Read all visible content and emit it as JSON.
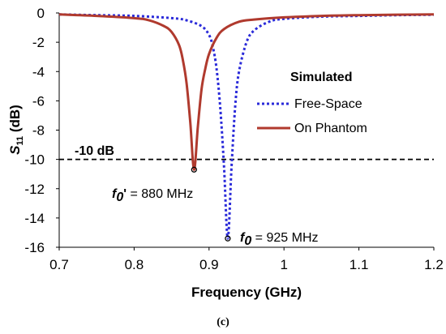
{
  "chart_data": {
    "type": "line",
    "title": "",
    "xlabel": "Frequency (GHz)",
    "ylabel_main": "S",
    "ylabel_sub": "11",
    "ylabel_unit": " (dB)",
    "xlim": [
      0.7,
      1.2
    ],
    "ylim": [
      -16,
      0
    ],
    "x_ticks": [
      "0.7",
      "0.8",
      "0.9",
      "1",
      "1.1",
      "1.2"
    ],
    "y_ticks": [
      "0",
      "-2",
      "-4",
      "-6",
      "-8",
      "-10",
      "-12",
      "-14",
      "-16"
    ],
    "grid": false,
    "legend": {
      "title": "Simulated",
      "placement": "right",
      "entries": [
        "Free-Space",
        "On Phantom"
      ]
    },
    "series": [
      {
        "name": "Free-Space",
        "color": "#2b2bd9",
        "style": "dotted",
        "x": [
          0.7,
          0.75,
          0.8,
          0.85,
          0.87,
          0.89,
          0.9,
          0.905,
          0.91,
          0.915,
          0.92,
          0.925,
          0.93,
          0.935,
          0.94,
          0.95,
          0.96,
          0.98,
          1.0,
          1.05,
          1.1,
          1.15,
          1.2
        ],
        "y": [
          -0.1,
          -0.15,
          -0.2,
          -0.35,
          -0.5,
          -0.9,
          -1.5,
          -2.3,
          -3.8,
          -6.5,
          -10.5,
          -15.4,
          -10.5,
          -6.3,
          -4.0,
          -2.0,
          -1.2,
          -0.6,
          -0.4,
          -0.25,
          -0.2,
          -0.15,
          -0.12
        ]
      },
      {
        "name": "On Phantom",
        "color": "#b03a2e",
        "style": "solid",
        "x": [
          0.7,
          0.75,
          0.8,
          0.82,
          0.84,
          0.85,
          0.86,
          0.865,
          0.87,
          0.875,
          0.88,
          0.885,
          0.89,
          0.895,
          0.9,
          0.91,
          0.92,
          0.94,
          0.96,
          1.0,
          1.05,
          1.1,
          1.15,
          1.2
        ],
        "y": [
          -0.1,
          -0.2,
          -0.35,
          -0.5,
          -0.9,
          -1.3,
          -2.2,
          -3.2,
          -4.8,
          -7.5,
          -10.7,
          -7.8,
          -5.2,
          -3.8,
          -2.8,
          -1.7,
          -1.1,
          -0.6,
          -0.45,
          -0.3,
          -0.2,
          -0.15,
          -0.12,
          -0.1
        ]
      }
    ],
    "reference_line": {
      "y": -10,
      "label": "-10 dB",
      "style": "dashed",
      "color": "#000000"
    },
    "markers": [
      {
        "x": 0.925,
        "y": -15.4,
        "label_main": "f",
        "label_sub": "0",
        "label_prime": "",
        "label_value": " = 925 MHz"
      },
      {
        "x": 0.88,
        "y": -10.7,
        "label_main": "f",
        "label_sub": "0",
        "label_prime": "'",
        "label_value": " = 880 MHz"
      }
    ]
  },
  "caption": "(c)"
}
